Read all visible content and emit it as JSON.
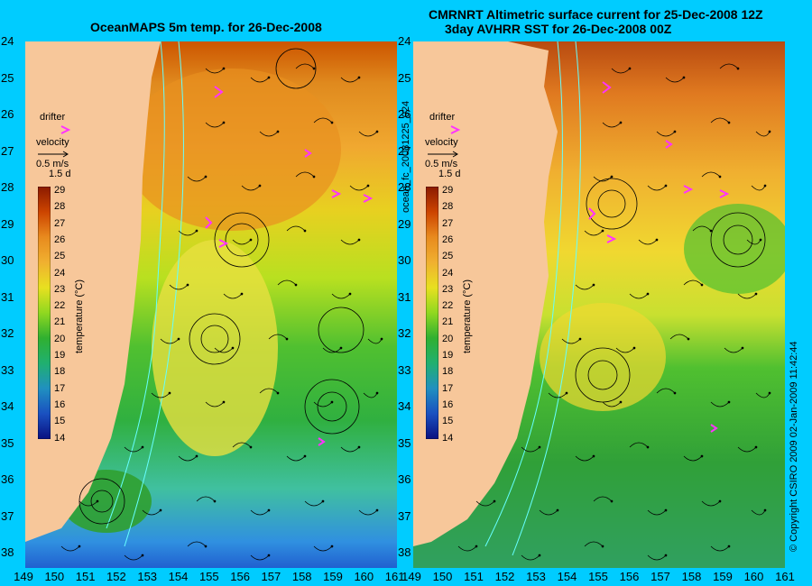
{
  "left_panel": {
    "title": "OceanMAPS 5m temp. for 26-Dec-2008",
    "drifter_label": "drifter",
    "velocity_label": "velocity",
    "velocity_scale": "0.5 m/s",
    "duration": "1.5 d"
  },
  "right_panel": {
    "title_line1": "CMRNRT Altimetric surface current for 25-Dec-2008 12Z",
    "title_line2": "3day AVHRR SST for 26-Dec-2008 00Z",
    "drifter_label": "drifter",
    "velocity_label": "velocity",
    "velocity_scale": "0.5 m/s",
    "duration": "1.5 d"
  },
  "side_label": "ocean_fc_20081225_024",
  "copyright": "© Copyright CSIRO 2009   02-Jan-2009 11:42:44",
  "colorbar": {
    "label": "temperature (°C)",
    "ticks": [
      "29",
      "28",
      "27",
      "26",
      "25",
      "24",
      "23",
      "22",
      "21",
      "20",
      "19",
      "18",
      "17",
      "16",
      "15",
      "14"
    ]
  },
  "y_ticks": [
    "24",
    "25",
    "26",
    "27",
    "28",
    "29",
    "30",
    "31",
    "32",
    "33",
    "34",
    "35",
    "36",
    "37",
    "38"
  ],
  "x_ticks": [
    "149",
    "150",
    "151",
    "152",
    "153",
    "154",
    "155",
    "156",
    "157",
    "158",
    "159",
    "160",
    "161"
  ],
  "colors": {
    "background": "#00ccff",
    "land": "#f7c79a",
    "drifter": "#ff33ff",
    "isobath": "#66ffff"
  }
}
